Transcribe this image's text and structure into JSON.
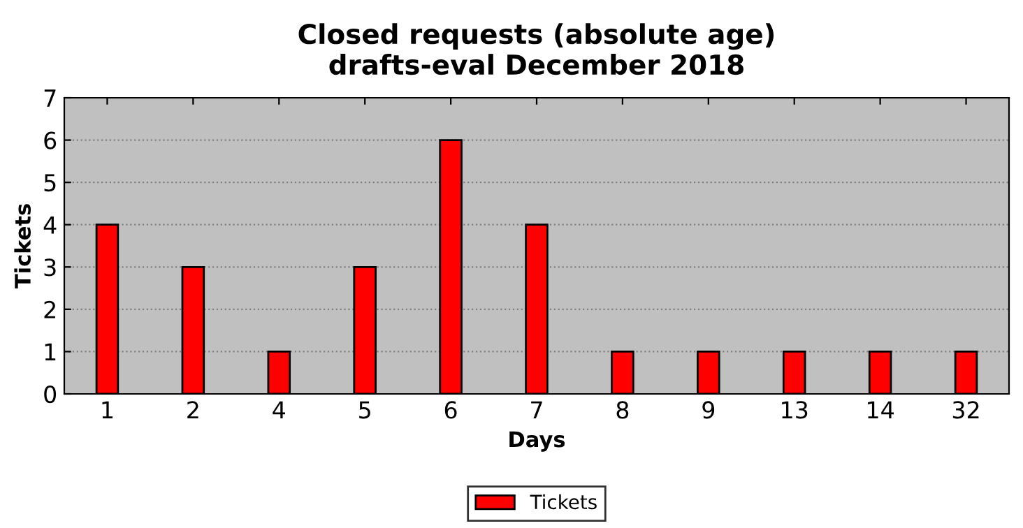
{
  "chart_data": {
    "type": "bar",
    "title": "Closed requests (absolute age)\ndrafts-eval December 2018",
    "xlabel": "Days",
    "ylabel": "Tickets",
    "categories": [
      "1",
      "2",
      "4",
      "5",
      "6",
      "7",
      "8",
      "9",
      "13",
      "14",
      "32"
    ],
    "series": [
      {
        "name": "Tickets",
        "color": "#ff0000",
        "values": [
          4,
          3,
          1,
          3,
          6,
          4,
          1,
          1,
          1,
          1,
          1
        ]
      }
    ],
    "ylim": [
      0,
      7
    ],
    "yticks": [
      0,
      1,
      2,
      3,
      4,
      5,
      6,
      7
    ],
    "grid": "y",
    "legend": "bottom"
  }
}
